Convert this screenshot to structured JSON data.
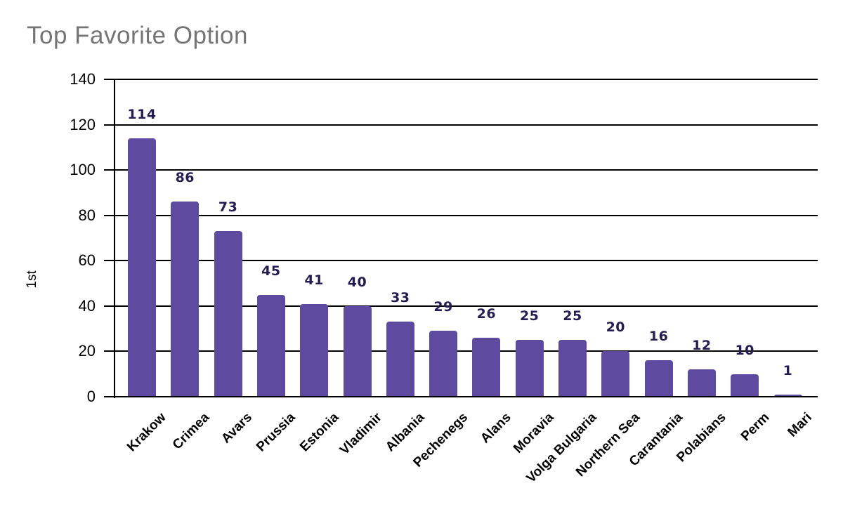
{
  "chart_data": {
    "type": "bar",
    "title": "Top Favorite Option",
    "ylabel": "1st",
    "xlabel": "",
    "categories": [
      "Krakow",
      "Crimea",
      "Avars",
      "Prussia",
      "Estonia",
      "Vladimir",
      "Albania",
      "Pechenegs",
      "Alans",
      "Moravia",
      "Volga Bulgaria",
      "Northern Sea",
      "Carantania",
      "Polabians",
      "Perm",
      "Mari"
    ],
    "values": [
      114,
      86,
      73,
      45,
      41,
      40,
      33,
      29,
      26,
      25,
      25,
      20,
      16,
      12,
      10,
      1
    ],
    "ylim": [
      0,
      140
    ],
    "yticks": [
      0,
      20,
      40,
      60,
      80,
      100,
      120,
      140
    ],
    "grid": true,
    "legend_position": "none",
    "data_labels": true,
    "colors": {
      "bar": "#5e4b9f",
      "value_label": "#251d52",
      "axis": "#000000",
      "tick_label": "#000000",
      "category_label": "#000000",
      "title": "#757575",
      "background": "#ffffff"
    }
  }
}
